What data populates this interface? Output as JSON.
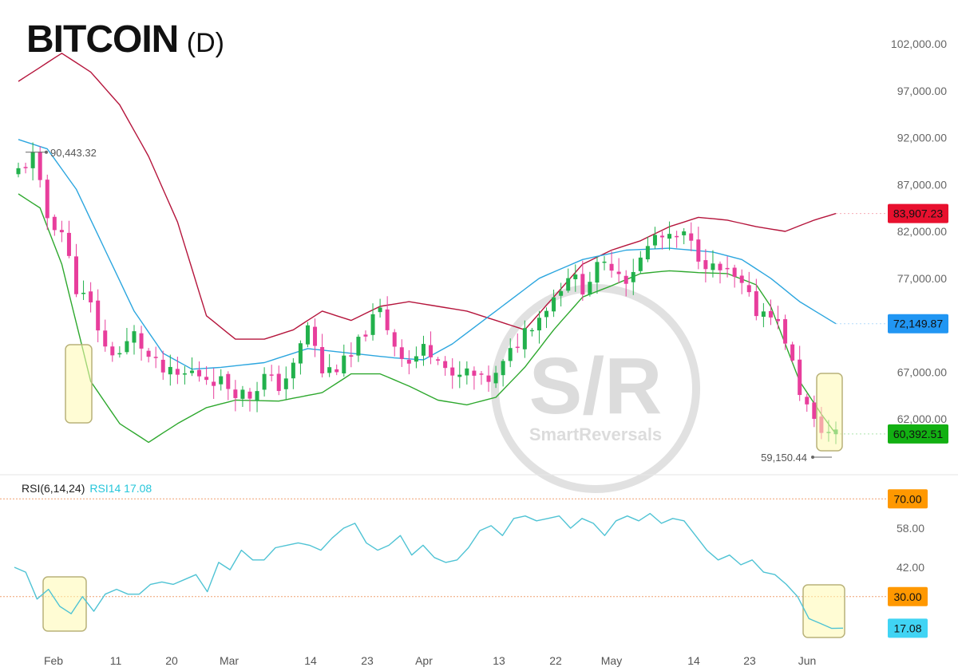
{
  "title": {
    "main": "BITCOIN",
    "timeframe": "(D)"
  },
  "rsi_legend": {
    "params": "RSI(6,14,24)",
    "value": "RSI14 17.08"
  },
  "colors": {
    "up": "#22b14c",
    "down": "#e83e9c",
    "upper_band": "#b5153c",
    "lower_band": "#2ea82e",
    "ma_line": "#2ca6df",
    "rsi_line": "#4fc3d4",
    "highlight": "#fff9b0"
  },
  "watermark": {
    "text": "S/R",
    "subtext": "SmartReversals"
  },
  "chart_data": [
    {
      "type": "candlestick",
      "name": "BTC daily with bands",
      "y_axis_ticks": [
        "102,000.00",
        "97,000.00",
        "92,000.00",
        "87,000.00",
        "82,000.00",
        "77,000.00",
        "67,000.00",
        "62,000.00"
      ],
      "ylim": [
        57000,
        103000
      ],
      "x_ticks": [
        "Feb",
        "11",
        "20",
        "Mar",
        "14",
        "23",
        "Apr",
        "13",
        "22",
        "May",
        "14",
        "23",
        "Jun"
      ],
      "price_tags": [
        {
          "label": "83,907.23",
          "value": 83907,
          "color": "#e8102e"
        },
        {
          "label": "72,149.87",
          "value": 72150,
          "color": "#2196f3"
        },
        {
          "label": "60,392.51",
          "value": 60393,
          "color": "#12b012"
        }
      ],
      "annotations": [
        {
          "label": "90,443.32",
          "value": 90443
        },
        {
          "label": "59,150.44",
          "value": 59150
        }
      ],
      "candle_anchors": [
        [
          0,
          88500
        ],
        [
          2,
          90000
        ],
        [
          4,
          83500
        ],
        [
          6,
          82000
        ],
        [
          8,
          76000
        ],
        [
          10,
          74000
        ],
        [
          12,
          69500
        ],
        [
          14,
          69000
        ],
        [
          16,
          71000
        ],
        [
          18,
          68500
        ],
        [
          20,
          67000
        ],
        [
          22,
          66500
        ],
        [
          24,
          67000
        ],
        [
          26,
          66500
        ],
        [
          28,
          66000
        ],
        [
          30,
          65000
        ],
        [
          32,
          64500
        ],
        [
          34,
          66500
        ],
        [
          36,
          65500
        ],
        [
          38,
          67500
        ],
        [
          40,
          72000
        ],
        [
          42,
          67000
        ],
        [
          44,
          67500
        ],
        [
          46,
          68500
        ],
        [
          48,
          71500
        ],
        [
          50,
          73500
        ],
        [
          52,
          70000
        ],
        [
          54,
          68000
        ],
        [
          56,
          69500
        ],
        [
          58,
          69000
        ],
        [
          60,
          66000
        ],
        [
          62,
          67000
        ],
        [
          64,
          66000
        ],
        [
          66,
          66500
        ],
        [
          68,
          69000
        ],
        [
          70,
          71500
        ],
        [
          72,
          73000
        ],
        [
          74,
          75000
        ],
        [
          76,
          77500
        ],
        [
          78,
          76000
        ],
        [
          80,
          78000
        ],
        [
          82,
          78500
        ],
        [
          84,
          77000
        ],
        [
          86,
          79000
        ],
        [
          88,
          81500
        ],
        [
          90,
          81000
        ],
        [
          92,
          81500
        ],
        [
          94,
          79500
        ],
        [
          96,
          78000
        ],
        [
          98,
          77500
        ],
        [
          100,
          76000
        ],
        [
          102,
          73500
        ],
        [
          104,
          73500
        ],
        [
          106,
          70500
        ],
        [
          108,
          65000
        ],
        [
          110,
          61500
        ],
        [
          112,
          60500
        ],
        [
          113,
          60392
        ]
      ],
      "upper_band": [
        [
          0,
          98000
        ],
        [
          2,
          99000
        ],
        [
          6,
          101000
        ],
        [
          10,
          99000
        ],
        [
          14,
          95500
        ],
        [
          18,
          90000
        ],
        [
          22,
          83000
        ],
        [
          26,
          73000
        ],
        [
          30,
          70500
        ],
        [
          34,
          70500
        ],
        [
          38,
          71500
        ],
        [
          42,
          73500
        ],
        [
          46,
          72500
        ],
        [
          50,
          74000
        ],
        [
          54,
          74500
        ],
        [
          58,
          74000
        ],
        [
          62,
          73500
        ],
        [
          66,
          72500
        ],
        [
          70,
          71500
        ],
        [
          74,
          75000
        ],
        [
          78,
          78500
        ],
        [
          82,
          80000
        ],
        [
          86,
          81000
        ],
        [
          90,
          82500
        ],
        [
          94,
          83500
        ],
        [
          98,
          83200
        ],
        [
          102,
          82500
        ],
        [
          106,
          82000
        ],
        [
          110,
          83200
        ],
        [
          113,
          83907
        ]
      ],
      "middle_line": [
        [
          0,
          91800
        ],
        [
          4,
          90800
        ],
        [
          8,
          86500
        ],
        [
          12,
          80000
        ],
        [
          16,
          73500
        ],
        [
          20,
          69000
        ],
        [
          24,
          67300
        ],
        [
          28,
          67500
        ],
        [
          34,
          68000
        ],
        [
          40,
          69500
        ],
        [
          46,
          69000
        ],
        [
          52,
          68500
        ],
        [
          56,
          68300
        ],
        [
          60,
          70000
        ],
        [
          66,
          73500
        ],
        [
          72,
          77000
        ],
        [
          78,
          79000
        ],
        [
          84,
          80000
        ],
        [
          90,
          80200
        ],
        [
          96,
          79800
        ],
        [
          100,
          79000
        ],
        [
          104,
          77000
        ],
        [
          108,
          74500
        ],
        [
          113,
          72150
        ]
      ],
      "lower_band": [
        [
          0,
          86000
        ],
        [
          3,
          84500
        ],
        [
          6,
          78500
        ],
        [
          10,
          66000
        ],
        [
          14,
          61500
        ],
        [
          18,
          59500
        ],
        [
          22,
          61500
        ],
        [
          26,
          63200
        ],
        [
          30,
          64000
        ],
        [
          36,
          63900
        ],
        [
          42,
          64800
        ],
        [
          46,
          66800
        ],
        [
          50,
          66800
        ],
        [
          54,
          65500
        ],
        [
          58,
          64000
        ],
        [
          62,
          63500
        ],
        [
          66,
          64300
        ],
        [
          70,
          67500
        ],
        [
          74,
          71500
        ],
        [
          78,
          75000
        ],
        [
          82,
          76200
        ],
        [
          86,
          77500
        ],
        [
          90,
          77800
        ],
        [
          94,
          77600
        ],
        [
          98,
          77500
        ],
        [
          102,
          76300
        ],
        [
          104,
          74000
        ],
        [
          108,
          66000
        ],
        [
          111,
          62500
        ],
        [
          113,
          60393
        ]
      ]
    },
    {
      "type": "line",
      "name": "RSI14",
      "y_axis_ticks": [
        "58.00",
        "42.00"
      ],
      "ylim": [
        9,
        73
      ],
      "reference_tags": [
        {
          "label": "70.00",
          "value": 70,
          "color": "#ff9800"
        },
        {
          "label": "30.00",
          "value": 30,
          "color": "#ff9800"
        },
        {
          "label": "17.08",
          "value": 17.08,
          "color": "#40d4f4"
        }
      ],
      "values": [
        [
          0,
          42
        ],
        [
          2,
          40
        ],
        [
          4,
          29
        ],
        [
          6,
          33
        ],
        [
          8,
          26
        ],
        [
          10,
          23
        ],
        [
          12,
          30
        ],
        [
          14,
          24
        ],
        [
          16,
          31
        ],
        [
          18,
          33
        ],
        [
          20,
          31
        ],
        [
          22,
          31
        ],
        [
          24,
          35
        ],
        [
          26,
          36
        ],
        [
          28,
          35
        ],
        [
          30,
          37
        ],
        [
          32,
          39
        ],
        [
          34,
          32
        ],
        [
          36,
          44
        ],
        [
          38,
          41
        ],
        [
          40,
          49
        ],
        [
          42,
          45
        ],
        [
          44,
          45
        ],
        [
          46,
          50
        ],
        [
          48,
          51
        ],
        [
          50,
          52
        ],
        [
          52,
          51
        ],
        [
          54,
          49
        ],
        [
          56,
          54
        ],
        [
          58,
          58
        ],
        [
          60,
          60
        ],
        [
          62,
          52
        ],
        [
          64,
          49
        ],
        [
          66,
          51
        ],
        [
          68,
          55
        ],
        [
          70,
          47
        ],
        [
          72,
          51
        ],
        [
          74,
          46
        ],
        [
          76,
          44
        ],
        [
          78,
          45
        ],
        [
          80,
          50
        ],
        [
          82,
          57
        ],
        [
          84,
          59
        ],
        [
          86,
          55
        ],
        [
          88,
          62
        ],
        [
          90,
          63
        ],
        [
          92,
          61
        ],
        [
          94,
          62
        ],
        [
          96,
          63
        ],
        [
          98,
          58
        ],
        [
          100,
          62
        ],
        [
          102,
          60
        ],
        [
          104,
          55
        ],
        [
          106,
          61
        ],
        [
          108,
          63
        ],
        [
          110,
          61
        ],
        [
          112,
          64
        ],
        [
          114,
          60
        ],
        [
          116,
          62
        ],
        [
          118,
          61
        ],
        [
          120,
          55
        ],
        [
          122,
          49
        ],
        [
          124,
          45
        ],
        [
          126,
          47
        ],
        [
          128,
          43
        ],
        [
          130,
          45
        ],
        [
          132,
          40
        ],
        [
          134,
          39
        ],
        [
          136,
          35
        ],
        [
          138,
          30
        ],
        [
          140,
          21
        ],
        [
          142,
          19
        ],
        [
          144,
          17
        ],
        [
          146,
          17.08
        ]
      ]
    }
  ]
}
